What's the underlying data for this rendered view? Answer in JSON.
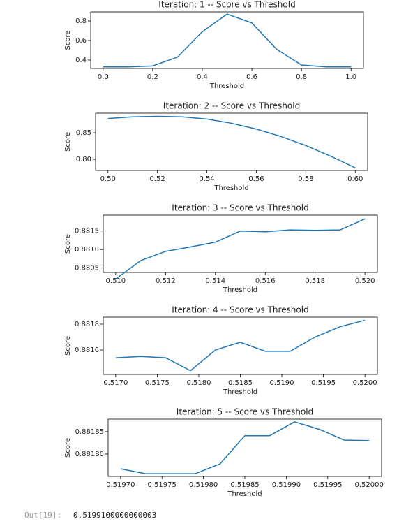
{
  "chart_data": [
    {
      "type": "line",
      "title": "Iteration: 1 -- Score vs Threshold",
      "x_label": "Threshold",
      "y_label": "Score",
      "color": "#1f77b4",
      "x": [
        0.0,
        0.1,
        0.2,
        0.3,
        0.4,
        0.5,
        0.6,
        0.7,
        0.8,
        0.9,
        1.0
      ],
      "values": [
        0.33,
        0.33,
        0.34,
        0.43,
        0.69,
        0.87,
        0.78,
        0.51,
        0.35,
        0.33,
        0.33
      ],
      "xlim": [
        -0.05,
        1.05
      ],
      "xticks": [
        {
          "value": 0,
          "label": "0.0"
        },
        0.2,
        0.4,
        0.6,
        0.8,
        {
          "value": 1,
          "label": "1.0"
        }
      ],
      "ylim": [
        0.314,
        0.893
      ],
      "yticks": [
        0.4,
        0.6,
        0.8
      ]
    },
    {
      "type": "line",
      "title": "Iteration: 2 -- Score vs Threshold",
      "x_label": "Threshold",
      "y_label": "Score",
      "color": "#1f77b4",
      "x": [
        0.5,
        0.51,
        0.52,
        0.53,
        0.54,
        0.55,
        0.56,
        0.57,
        0.58,
        0.59,
        0.6
      ],
      "values": [
        0.877,
        0.88,
        0.881,
        0.88,
        0.876,
        0.868,
        0.857,
        0.843,
        0.826,
        0.806,
        0.784
      ],
      "xlim": [
        0.495,
        0.605
      ],
      "xticks": [
        {
          "value": 0.5,
          "label": "0.50"
        },
        0.52,
        0.54,
        0.56,
        0.58,
        {
          "value": 0.6,
          "label": "0.60"
        }
      ],
      "ylim": [
        0.779,
        0.887
      ],
      "yticks": [
        {
          "value": 0.8,
          "label": "0.80"
        },
        0.85
      ]
    },
    {
      "type": "line",
      "title": "Iteration: 3 -- Score vs Threshold",
      "x_label": "Threshold",
      "y_label": "Score",
      "color": "#1f77b4",
      "x": [
        0.51,
        0.511,
        0.512,
        0.513,
        0.514,
        0.515,
        0.516,
        0.517,
        0.518,
        0.519,
        0.52
      ],
      "values": [
        0.8802,
        0.8807,
        0.88095,
        0.88107,
        0.8812,
        0.8815,
        0.88148,
        0.88153,
        0.88152,
        0.88153,
        0.88183
      ],
      "xlim": [
        0.5095,
        0.5205
      ],
      "xticks": [
        {
          "value": 0.51,
          "label": "0.510"
        },
        0.512,
        0.514,
        0.516,
        0.518,
        {
          "value": 0.52,
          "label": "0.520"
        }
      ],
      "ylim": [
        0.88038,
        0.88193
      ],
      "yticks": [
        0.8805,
        {
          "value": 0.881,
          "label": "0.8810"
        },
        0.8815
      ]
    },
    {
      "type": "line",
      "title": "Iteration: 4 -- Score vs Threshold",
      "x_label": "Threshold",
      "y_label": "Score",
      "color": "#1f77b4",
      "x": [
        0.517,
        0.5173,
        0.5176,
        0.5179,
        0.5182,
        0.5185,
        0.5188,
        0.5191,
        0.5194,
        0.5197,
        0.52
      ],
      "values": [
        0.88154,
        0.88155,
        0.88154,
        0.88144,
        0.8816,
        0.88166,
        0.88159,
        0.88159,
        0.8817,
        0.88178,
        0.88183
      ],
      "xlim": [
        0.51685,
        0.52015
      ],
      "xticks": [
        {
          "value": 0.517,
          "label": "0.5170"
        },
        0.5175,
        {
          "value": 0.518,
          "label": "0.5180"
        },
        0.5185,
        {
          "value": 0.519,
          "label": "0.5190"
        },
        0.5195,
        {
          "value": 0.52,
          "label": "0.5200"
        }
      ],
      "ylim": [
        0.881411,
        0.881854
      ],
      "yticks": [
        0.8816,
        0.8818
      ]
    },
    {
      "type": "line",
      "title": "Iteration: 5 -- Score vs Threshold",
      "x_label": "Threshold",
      "y_label": "Score",
      "color": "#1f77b4",
      "x": [
        0.5197,
        0.51973,
        0.51976,
        0.51979,
        0.51982,
        0.51985,
        0.51988,
        0.51991,
        0.51994,
        0.51997,
        0.52
      ],
      "values": [
        0.881767,
        0.881756,
        0.881756,
        0.881756,
        0.881778,
        0.881841,
        0.881841,
        0.881872,
        0.881855,
        0.881831,
        0.88183
      ],
      "xlim": [
        0.519685,
        0.520015
      ],
      "xticks": [
        {
          "value": 0.5197,
          "label": "0.51970"
        },
        0.51975,
        {
          "value": 0.5198,
          "label": "0.51980"
        },
        0.51985,
        {
          "value": 0.5199,
          "label": "0.51990"
        },
        0.51995,
        {
          "value": 0.52,
          "label": "0.52000"
        }
      ],
      "ylim": [
        0.88175,
        0.881878
      ],
      "yticks": [
        {
          "value": 0.8818,
          "label": "0.88180"
        },
        0.88185
      ]
    }
  ],
  "output": {
    "prompt": "Out[19]:",
    "text": "0.5199100000000003"
  }
}
